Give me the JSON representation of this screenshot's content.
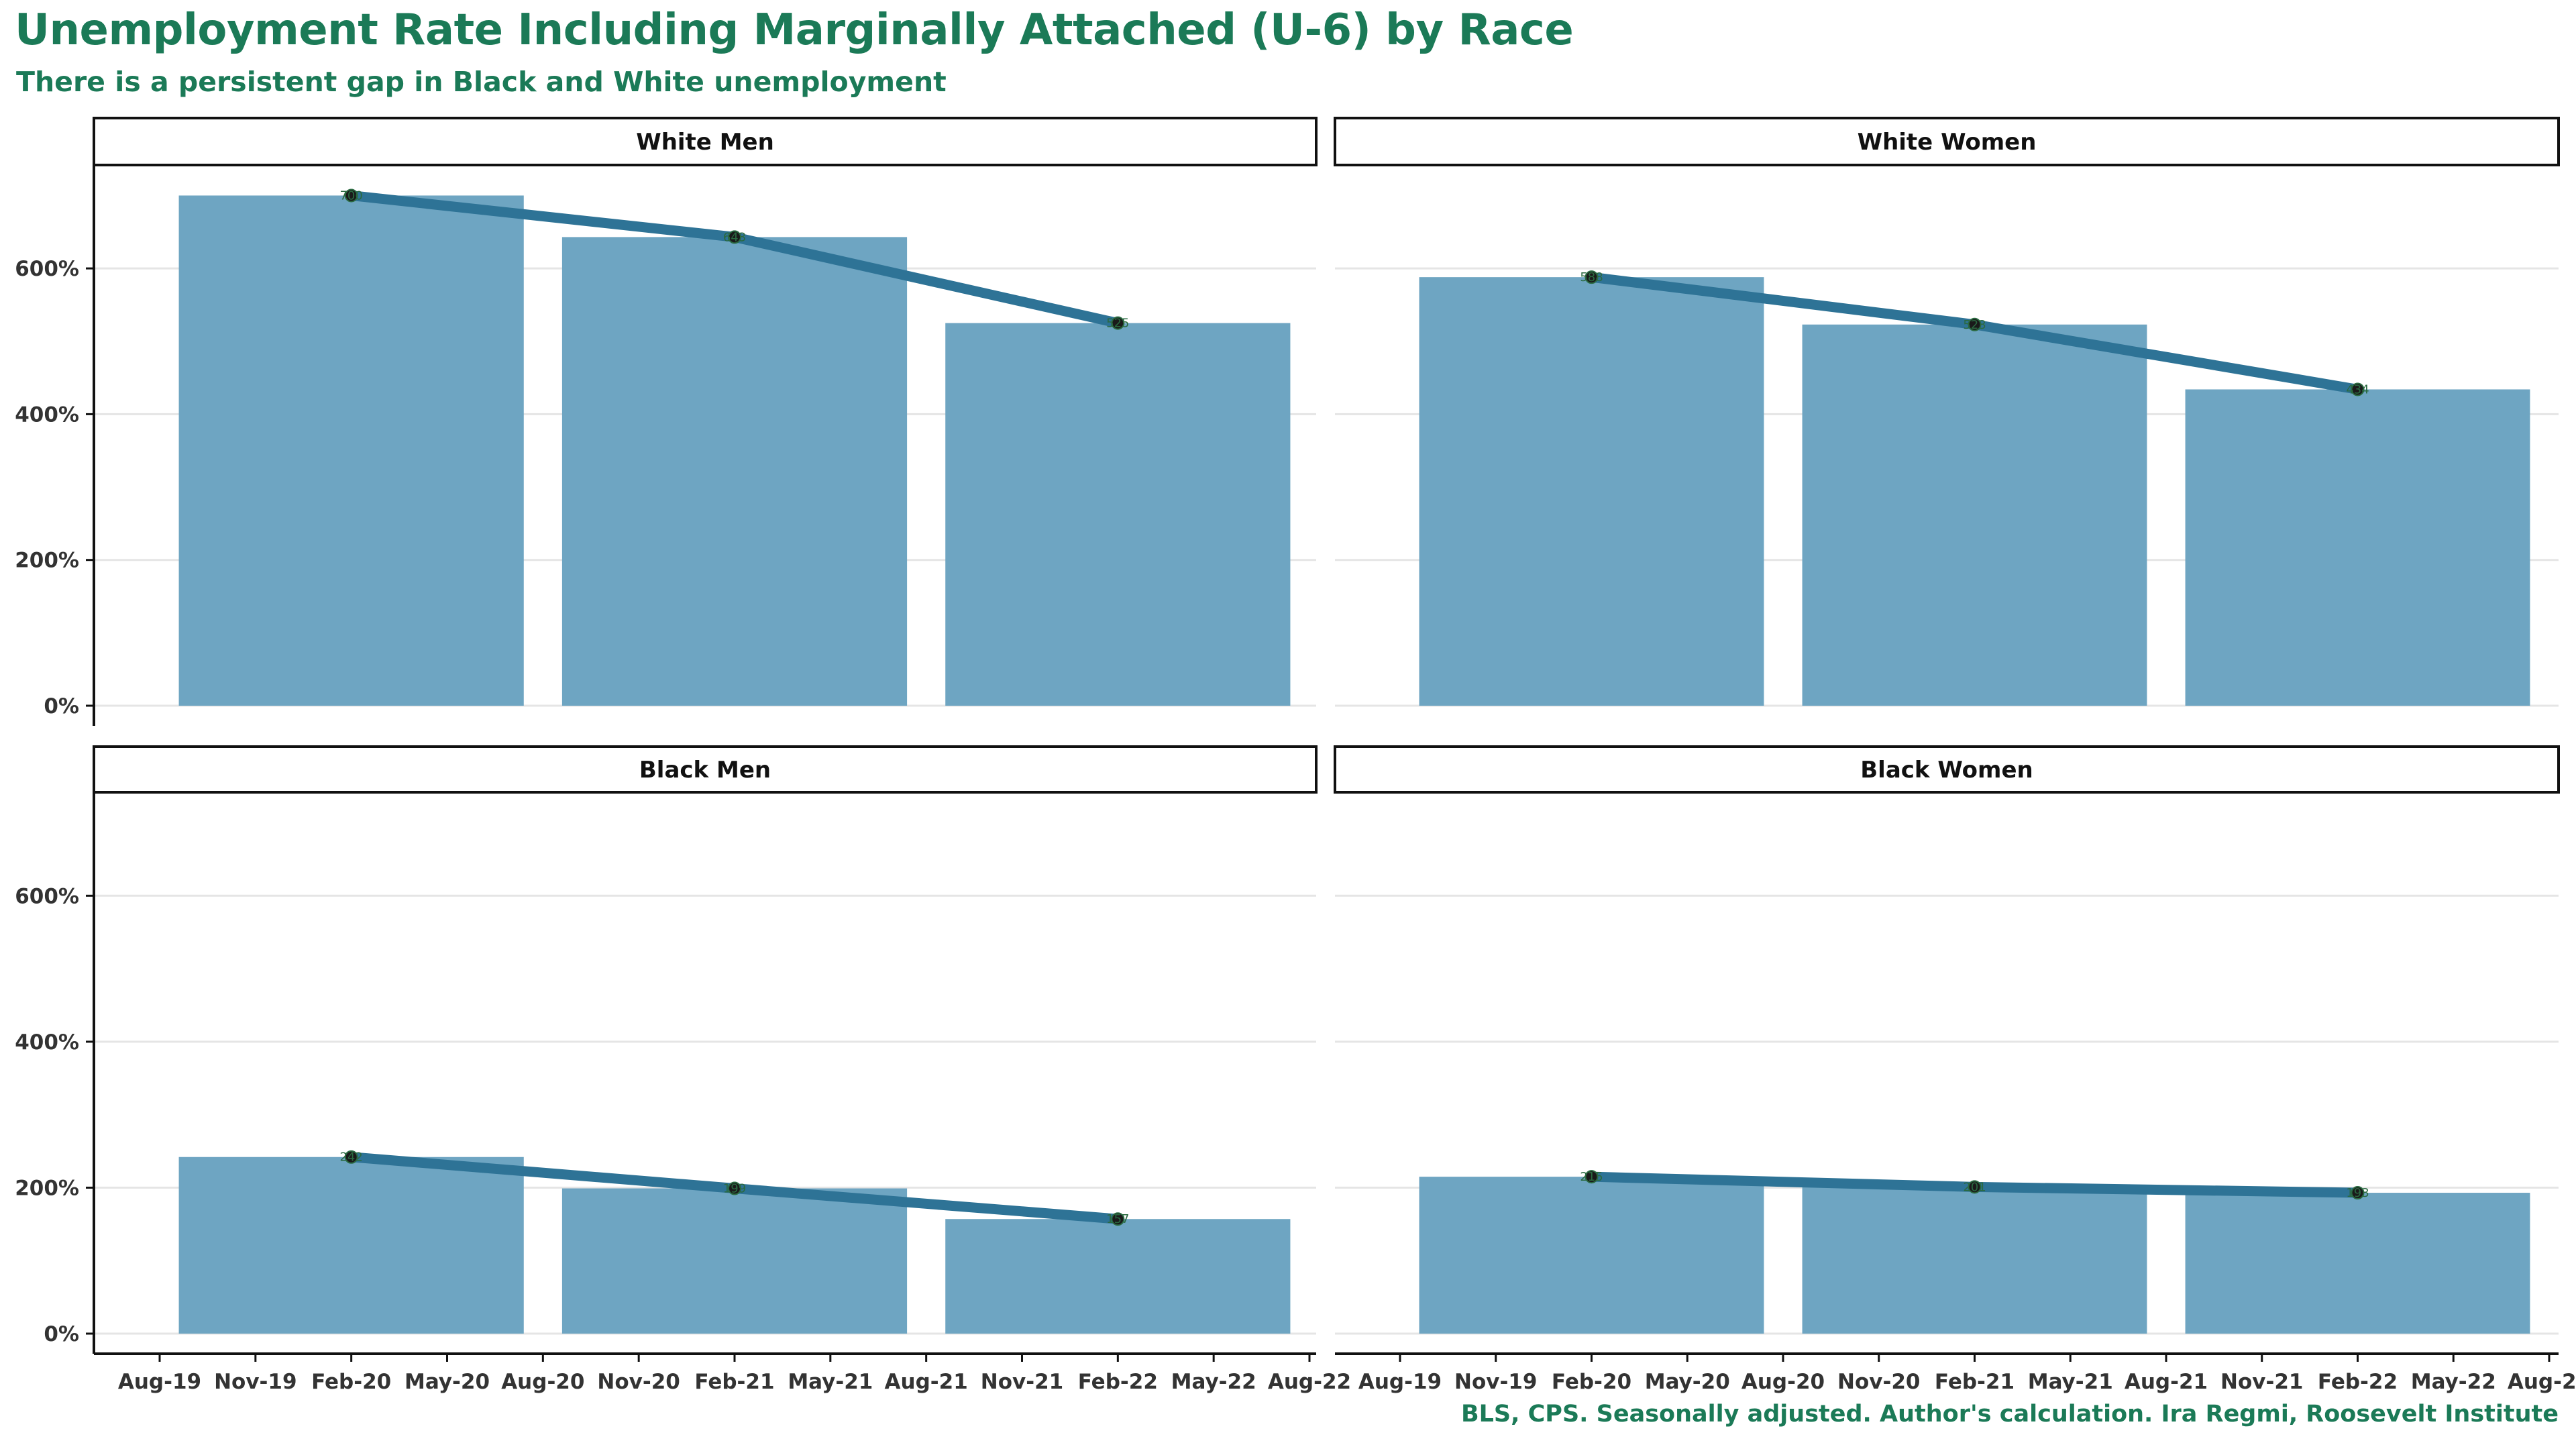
{
  "title": "Unemployment Rate Including Marginally Attached (U-6) by Race",
  "subtitle": "There is a persistent gap in Black and White unemployment",
  "caption": "BLS, CPS. Seasonally adjusted. Author's calculation. Ira Regmi, Roosevelt Institute",
  "colors": {
    "title": "#1b7a57",
    "bar": "#6ea5c2",
    "line": "#2e7396",
    "point": "#1a1a1a",
    "grid": "#e5e5e5"
  },
  "chart_data": {
    "type": "bar",
    "layout": "facet-grid-2x2",
    "x_axis": {
      "type": "date",
      "ticks": [
        "Aug-19",
        "Nov-19",
        "Feb-20",
        "May-20",
        "Aug-20",
        "Nov-20",
        "Feb-21",
        "May-21",
        "Aug-21",
        "Nov-21",
        "Feb-22",
        "May-22",
        "Aug-22"
      ],
      "range": [
        "2019-07",
        "2022-08"
      ]
    },
    "y_axis": {
      "ticks": [
        "0%",
        "200%",
        "400%",
        "600%"
      ],
      "range": [
        0,
        740
      ],
      "unit": "%"
    },
    "grid": true,
    "facets": [
      {
        "name": "White Men",
        "dates": [
          "2020-02",
          "2021-02",
          "2022-02"
        ],
        "bar_values": [
          700,
          643,
          525
        ],
        "line_values": [
          700,
          643,
          525
        ]
      },
      {
        "name": "White Women",
        "dates": [
          "2020-02",
          "2021-02",
          "2022-02"
        ],
        "bar_values": [
          588,
          523,
          434
        ],
        "line_values": [
          588,
          523,
          434
        ]
      },
      {
        "name": "Black Men",
        "dates": [
          "2020-02",
          "2021-02",
          "2022-02"
        ],
        "bar_values": [
          242,
          199,
          157
        ],
        "line_values": [
          242,
          199,
          157
        ]
      },
      {
        "name": "Black Women",
        "dates": [
          "2020-02",
          "2021-02",
          "2022-02"
        ],
        "bar_values": [
          215,
          201,
          193
        ],
        "line_values": [
          215,
          201,
          193
        ]
      }
    ]
  }
}
